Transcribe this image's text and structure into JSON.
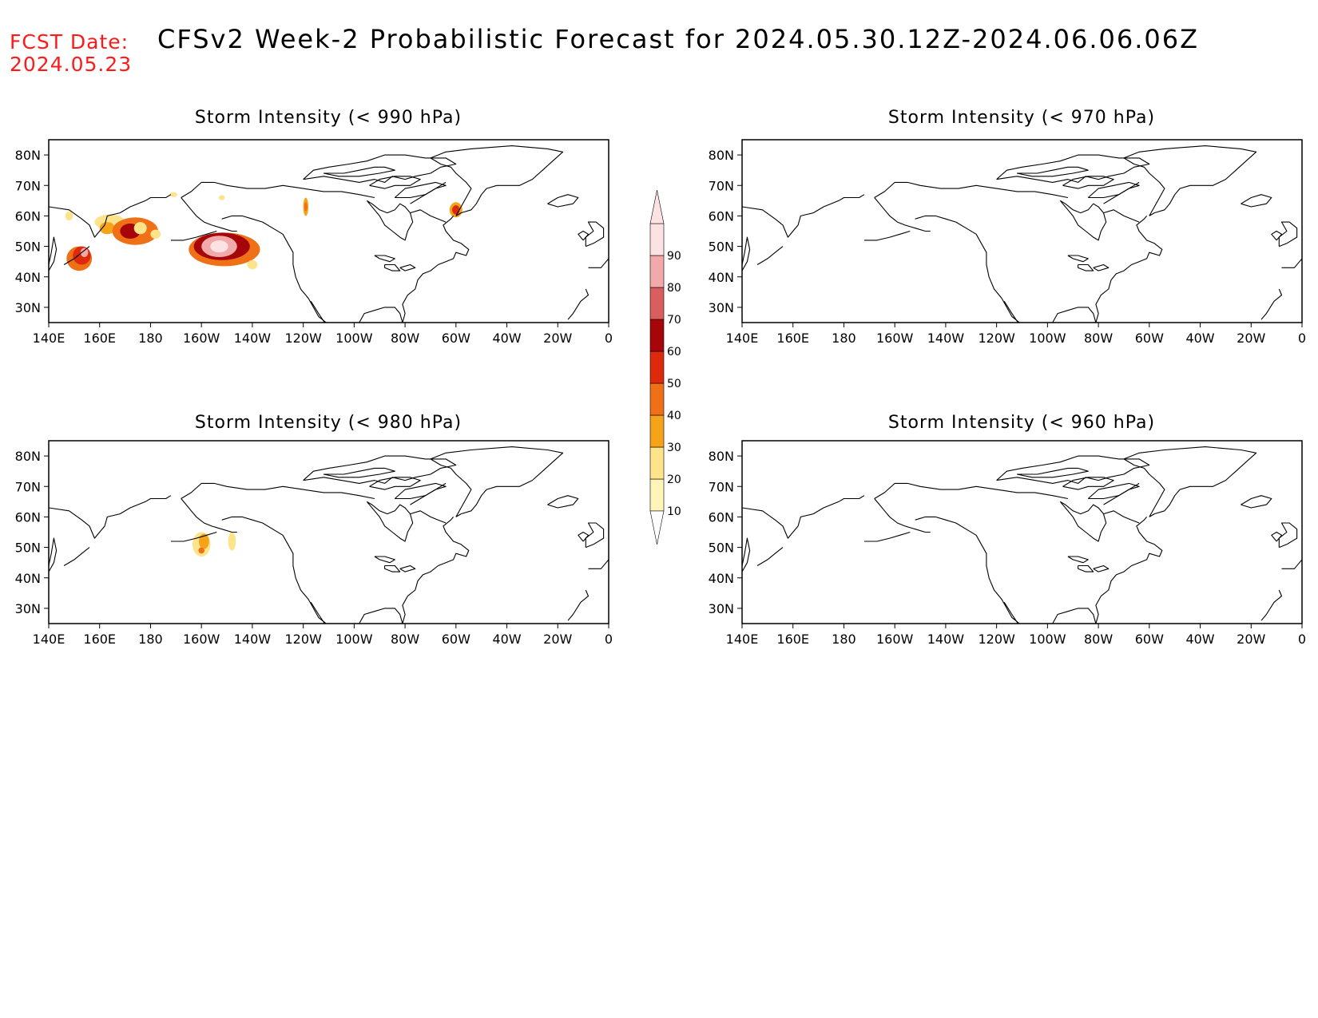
{
  "header": {
    "fcst_label": "FCST Date:",
    "fcst_date": "2024.05.23",
    "title": "CFSv2 Week-2 Probabilistic Forecast for 2024.05.30.12Z-2024.06.06.06Z"
  },
  "map_extent": {
    "lon_min": 140,
    "lon_max": 360,
    "lat_min": 25,
    "lat_max": 85
  },
  "lat_ticks": [
    {
      "lat": 80,
      "label": "80N"
    },
    {
      "lat": 70,
      "label": "70N"
    },
    {
      "lat": 60,
      "label": "60N"
    },
    {
      "lat": 50,
      "label": "50N"
    },
    {
      "lat": 40,
      "label": "40N"
    },
    {
      "lat": 30,
      "label": "30N"
    }
  ],
  "lon_ticks": [
    {
      "lon": 140,
      "label": "140E"
    },
    {
      "lon": 160,
      "label": "160E"
    },
    {
      "lon": 180,
      "label": "180"
    },
    {
      "lon": 200,
      "label": "160W"
    },
    {
      "lon": 220,
      "label": "140W"
    },
    {
      "lon": 240,
      "label": "120W"
    },
    {
      "lon": 260,
      "label": "100W"
    },
    {
      "lon": 280,
      "label": "80W"
    },
    {
      "lon": 300,
      "label": "60W"
    },
    {
      "lon": 320,
      "label": "40W"
    },
    {
      "lon": 340,
      "label": "20W"
    },
    {
      "lon": 360,
      "label": "0"
    }
  ],
  "colorbar": {
    "levels": [
      "10",
      "20",
      "30",
      "40",
      "50",
      "60",
      "70",
      "80",
      "90"
    ],
    "colors": [
      "#fff5b8",
      "#fde38a",
      "#f5a41a",
      "#f07018",
      "#de2a0c",
      "#a6050a",
      "#d95f5f",
      "#f2a9aa",
      "#fde2e4"
    ]
  },
  "panels": [
    {
      "title": "Storm Intensity (< 990 hPa)",
      "regions": [
        {
          "prob": 20,
          "lon": 148,
          "lat": 60,
          "rlon": 1.5,
          "rlat": 1.5
        },
        {
          "prob": 40,
          "lon": 152,
          "lat": 46,
          "rlon": 5,
          "rlat": 4
        },
        {
          "prob": 50,
          "lon": 153,
          "lat": 47,
          "rlon": 3.5,
          "rlat": 3
        },
        {
          "prob": 80,
          "lon": 154,
          "lat": 48,
          "rlon": 1.5,
          "rlat": 1.5
        },
        {
          "prob": 20,
          "lon": 164,
          "lat": 58,
          "rlon": 6,
          "rlat": 2.5
        },
        {
          "prob": 30,
          "lon": 163,
          "lat": 56,
          "rlon": 3,
          "rlat": 2
        },
        {
          "prob": 40,
          "lon": 174,
          "lat": 55,
          "rlon": 9,
          "rlat": 4.5
        },
        {
          "prob": 60,
          "lon": 172,
          "lat": 55,
          "rlon": 4,
          "rlat": 2.5
        },
        {
          "prob": 20,
          "lon": 176,
          "lat": 56,
          "rlon": 2.5,
          "rlat": 2
        },
        {
          "prob": 20,
          "lon": 182,
          "lat": 54,
          "rlon": 2,
          "rlat": 1.5
        },
        {
          "prob": 40,
          "lon": 209,
          "lat": 49,
          "rlon": 14,
          "rlat": 5.5
        },
        {
          "prob": 60,
          "lon": 208,
          "lat": 50,
          "rlon": 11,
          "rlat": 4.5
        },
        {
          "prob": 80,
          "lon": 207,
          "lat": 50,
          "rlon": 7,
          "rlat": 3.5
        },
        {
          "prob": 90,
          "lon": 207,
          "lat": 50,
          "rlon": 3.5,
          "rlat": 2
        },
        {
          "prob": 20,
          "lon": 220,
          "lat": 44,
          "rlon": 2,
          "rlat": 1.5
        },
        {
          "prob": 30,
          "lon": 241,
          "lat": 63,
          "rlon": 1,
          "rlat": 3
        },
        {
          "prob": 40,
          "lon": 241,
          "lat": 63,
          "rlon": 0.6,
          "rlat": 1.5
        },
        {
          "prob": 30,
          "lon": 300,
          "lat": 62,
          "rlon": 2.5,
          "rlat": 2.5
        },
        {
          "prob": 50,
          "lon": 300,
          "lat": 62,
          "rlon": 1.5,
          "rlat": 1.5
        },
        {
          "prob": 20,
          "lon": 189,
          "lat": 67,
          "rlon": 1.5,
          "rlat": 0.8
        },
        {
          "prob": 20,
          "lon": 208,
          "lat": 66,
          "rlon": 1.2,
          "rlat": 0.8
        }
      ]
    },
    {
      "title": "Storm Intensity (< 970 hPa)",
      "regions": []
    },
    {
      "title": "Storm Intensity (< 980 hPa)",
      "regions": [
        {
          "prob": 20,
          "lon": 200,
          "lat": 51,
          "rlon": 3.5,
          "rlat": 4
        },
        {
          "prob": 30,
          "lon": 201,
          "lat": 52,
          "rlon": 2,
          "rlat": 2.5
        },
        {
          "prob": 40,
          "lon": 200,
          "lat": 49,
          "rlon": 1.2,
          "rlat": 1
        },
        {
          "prob": 20,
          "lon": 212,
          "lat": 52,
          "rlon": 1.5,
          "rlat": 3
        }
      ]
    },
    {
      "title": "Storm Intensity (< 960 hPa)",
      "regions": []
    }
  ]
}
